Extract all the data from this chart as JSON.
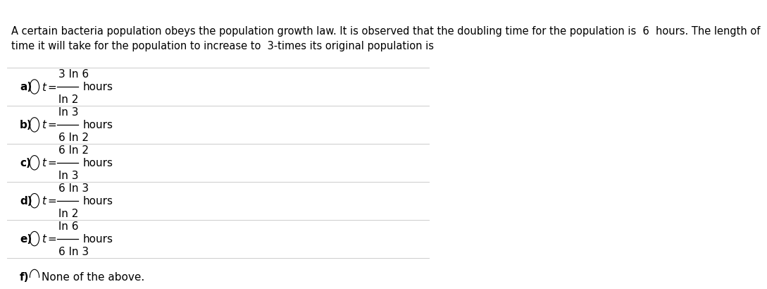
{
  "background_color": "#ffffff",
  "header_text": "A certain bacteria population obeys the population growth law. It is observed that the doubling time for the population is  6  hours. The length of\ntime it will take for the population to increase to  3-times its original population is",
  "options": [
    {
      "label": "a)",
      "numerator": "3 ln 6",
      "denominator": "ln 2",
      "suffix": "hours"
    },
    {
      "label": "b)",
      "numerator": "ln 3",
      "denominator": "6 ln 2",
      "suffix": "hours"
    },
    {
      "label": "c)",
      "numerator": "6 ln 2",
      "denominator": "ln 3",
      "suffix": "hours"
    },
    {
      "label": "d)",
      "numerator": "6 ln 3",
      "denominator": "ln 2",
      "suffix": "hours"
    },
    {
      "label": "e)",
      "numerator": "ln 6",
      "denominator": "6 ln 3",
      "suffix": "hours"
    },
    {
      "label": "f)",
      "text": "None of the above.",
      "suffix": ""
    }
  ],
  "divider_color": "#cccccc",
  "text_color": "#000000",
  "label_fontsize": 11,
  "formula_fontsize": 11,
  "header_fontsize": 10.5
}
